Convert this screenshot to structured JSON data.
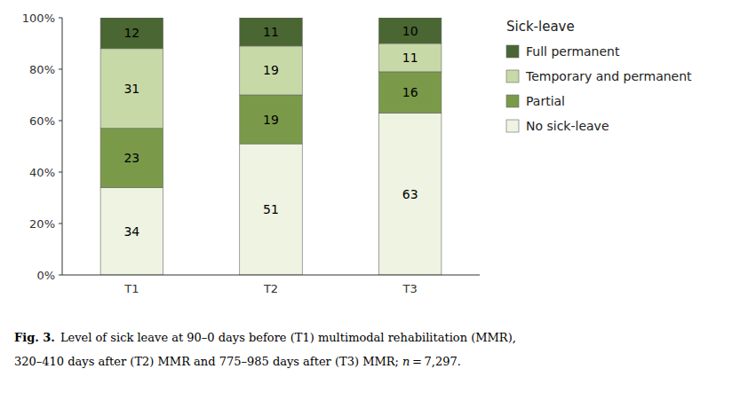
{
  "chart_data": {
    "type": "bar",
    "stacked": true,
    "data_labels": true,
    "grid": false,
    "legend": "right",
    "legend_title": "Sick-leave",
    "categories": [
      "T1",
      "T2",
      "T3"
    ],
    "series": [
      {
        "name": "No sick-leave",
        "values": [
          34,
          51,
          63
        ],
        "color": "#eef3e2"
      },
      {
        "name": "Partial",
        "values": [
          23,
          19,
          16
        ],
        "color": "#7a9a4a"
      },
      {
        "name": "Temporary and permanent",
        "values": [
          31,
          19,
          11
        ],
        "color": "#c8d9a8"
      },
      {
        "name": "Full permanent",
        "values": [
          12,
          11,
          10
        ],
        "color": "#4a6632"
      }
    ],
    "ylim": [
      0,
      100
    ],
    "yticks": [
      {
        "value": 0,
        "label": "0%"
      },
      {
        "value": 20,
        "label": "20%"
      },
      {
        "value": 40,
        "label": "40%"
      },
      {
        "value": 60,
        "label": "60%"
      },
      {
        "value": 80,
        "label": "80%"
      },
      {
        "value": 100,
        "label": "100%"
      }
    ],
    "caption_bold": "Fig. 3.",
    "caption_lines": [
      "Level of sick leave at 90–0 days before (T1) multimodal rehabilitation (MMR),",
      "320–410 days after (T2) MMR and 775–985 days after (T3) MMR; "
    ],
    "caption_italic": "n",
    "caption_end": " = 7,297."
  }
}
